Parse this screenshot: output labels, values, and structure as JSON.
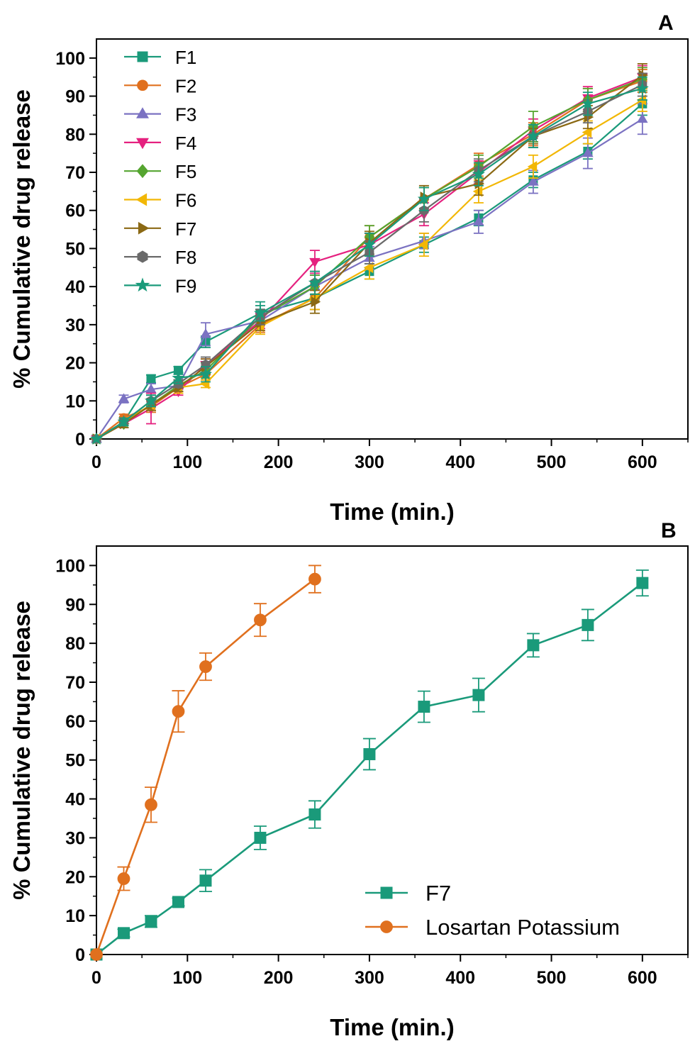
{
  "chart_data": [
    {
      "panel": "A",
      "type": "line",
      "xlabel": "Time (min.)",
      "ylabel": "% Cumulative drug release",
      "xlim": [
        0,
        650
      ],
      "ylim": [
        0,
        105
      ],
      "xticks": [
        0,
        100,
        200,
        300,
        400,
        500,
        600
      ],
      "yticks": [
        0,
        10,
        20,
        30,
        40,
        50,
        60,
        70,
        80,
        90,
        100
      ],
      "legend_position": "top-left",
      "x": [
        0,
        30,
        60,
        90,
        120,
        180,
        240,
        300,
        360,
        420,
        480,
        540,
        600
      ],
      "series": [
        {
          "name": "F1",
          "color": "#1a9a7a",
          "marker": "square",
          "values": [
            0,
            4.5,
            15.8,
            18,
            25.5,
            33,
            37,
            44,
            51,
            58,
            68,
            75.5,
            88
          ],
          "errors": [
            0,
            1,
            1,
            1,
            1.5,
            3,
            3,
            2,
            2,
            2,
            2,
            2,
            3
          ]
        },
        {
          "name": "F2",
          "color": "#e0701e",
          "marker": "circle",
          "values": [
            0,
            5.5,
            8.5,
            13.5,
            17,
            30,
            37,
            53,
            63,
            72,
            80,
            89,
            94
          ],
          "errors": [
            0,
            1,
            1.5,
            1,
            1.5,
            2,
            3,
            3,
            3,
            3,
            3,
            3,
            3
          ]
        },
        {
          "name": "F3",
          "color": "#7b72c2",
          "marker": "triangle-up",
          "values": [
            0,
            10.5,
            13,
            14,
            27.5,
            31,
            40,
            47.5,
            52,
            57,
            67.5,
            75,
            84
          ],
          "errors": [
            0,
            1,
            1.5,
            1.5,
            3,
            2,
            3,
            3,
            2,
            3,
            3,
            4,
            4
          ]
        },
        {
          "name": "F4",
          "color": "#e5217f",
          "marker": "triangle-down",
          "values": [
            0,
            4,
            8,
            12.5,
            19.5,
            31,
            46.5,
            51,
            59,
            70,
            81,
            89.5,
            95
          ],
          "errors": [
            0,
            1,
            4,
            1,
            1.5,
            2,
            3,
            3,
            3,
            3,
            3,
            3,
            3
          ]
        },
        {
          "name": "F5",
          "color": "#55a530",
          "marker": "diamond",
          "values": [
            0,
            4,
            9,
            14,
            18,
            32,
            40,
            53,
            63,
            71.5,
            82,
            89,
            94.5
          ],
          "errors": [
            0,
            1,
            1.5,
            1.5,
            2,
            2,
            3,
            3,
            3,
            3,
            4,
            3,
            3
          ]
        },
        {
          "name": "F6",
          "color": "#f2b705",
          "marker": "triangle-left",
          "values": [
            0,
            4.5,
            9,
            13.5,
            14.5,
            29.5,
            37,
            45,
            51,
            65,
            71.5,
            80.5,
            89
          ],
          "errors": [
            0,
            1,
            1.5,
            1.5,
            1,
            2,
            3,
            3,
            3,
            3,
            3,
            3,
            3
          ]
        },
        {
          "name": "F7",
          "color": "#8b6914",
          "marker": "triangle-right",
          "values": [
            0,
            4,
            9,
            13.5,
            19,
            30.5,
            36,
            51.5,
            63.5,
            67,
            79.5,
            84.5,
            95.5
          ],
          "errors": [
            0,
            1,
            1.5,
            1,
            2,
            2,
            3,
            3,
            3,
            3,
            2,
            3,
            3
          ]
        },
        {
          "name": "F8",
          "color": "#6a6a6a",
          "marker": "hexagon",
          "values": [
            0,
            4.5,
            10,
            14.5,
            19.5,
            32,
            41,
            49,
            60,
            70.5,
            79.5,
            86,
            93
          ],
          "errors": [
            0,
            1,
            1.5,
            1,
            2,
            2,
            3,
            3,
            3,
            3,
            3,
            3,
            3
          ]
        },
        {
          "name": "F9",
          "color": "#1a9a7a",
          "marker": "star",
          "values": [
            0,
            4.5,
            10,
            16,
            17,
            33,
            41,
            51,
            63,
            69.5,
            79.5,
            88,
            92
          ],
          "errors": [
            0,
            1,
            1.5,
            1.5,
            2,
            2,
            3,
            3,
            3,
            3,
            3,
            3,
            3
          ]
        }
      ]
    },
    {
      "panel": "B",
      "type": "line",
      "xlabel": "Time (min.)",
      "ylabel": "% Cumulative drug release",
      "xlim": [
        0,
        650
      ],
      "ylim": [
        0,
        105
      ],
      "xticks": [
        0,
        100,
        200,
        300,
        400,
        500,
        600
      ],
      "yticks": [
        0,
        10,
        20,
        30,
        40,
        50,
        60,
        70,
        80,
        90,
        100
      ],
      "legend_position": "bottom-right",
      "series": [
        {
          "name": "F7",
          "color": "#1a9a7a",
          "marker": "square",
          "x": [
            0,
            30,
            60,
            90,
            120,
            180,
            240,
            300,
            360,
            420,
            480,
            540,
            600
          ],
          "values": [
            0,
            5.5,
            8.5,
            13.5,
            19,
            30,
            36,
            51.5,
            63.7,
            66.7,
            79.5,
            84.7,
            95.5
          ],
          "errors": [
            0,
            1,
            1.5,
            1,
            2.8,
            3,
            3.5,
            4,
            4,
            4.3,
            3,
            4,
            3.3
          ]
        },
        {
          "name": "Losartan Potassium",
          "color": "#e0701e",
          "marker": "circle",
          "x": [
            0,
            30,
            60,
            90,
            120,
            180,
            240
          ],
          "values": [
            0,
            19.5,
            38.5,
            62.5,
            74,
            86,
            96.5
          ],
          "errors": [
            0,
            3,
            4.5,
            5.3,
            3.5,
            4.2,
            3.5
          ]
        }
      ]
    }
  ]
}
